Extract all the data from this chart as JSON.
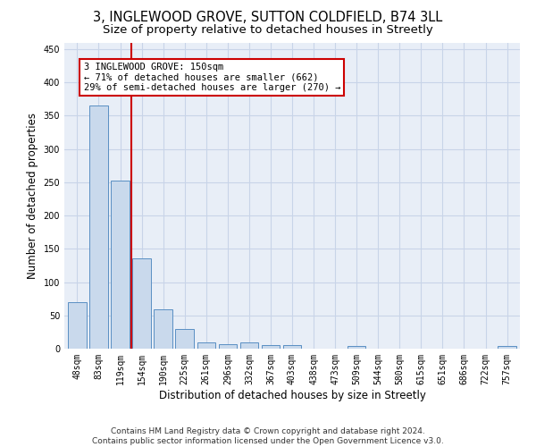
{
  "title_line1": "3, INGLEWOOD GROVE, SUTTON COLDFIELD, B74 3LL",
  "title_line2": "Size of property relative to detached houses in Streetly",
  "xlabel": "Distribution of detached houses by size in Streetly",
  "ylabel": "Number of detached properties",
  "categories": [
    "48sqm",
    "83sqm",
    "119sqm",
    "154sqm",
    "190sqm",
    "225sqm",
    "261sqm",
    "296sqm",
    "332sqm",
    "367sqm",
    "403sqm",
    "438sqm",
    "473sqm",
    "509sqm",
    "544sqm",
    "580sqm",
    "615sqm",
    "651sqm",
    "686sqm",
    "722sqm",
    "757sqm"
  ],
  "values": [
    70,
    365,
    252,
    135,
    59,
    30,
    10,
    7,
    10,
    5,
    5,
    0,
    0,
    4,
    0,
    0,
    0,
    0,
    0,
    0,
    4
  ],
  "bar_color": "#c9d9ec",
  "bar_edge_color": "#5a8fc3",
  "annotation_line1": "3 INGLEWOOD GROVE: 150sqm",
  "annotation_line2": "← 71% of detached houses are smaller (662)",
  "annotation_line3": "29% of semi-detached houses are larger (270) →",
  "annotation_box_color": "#ffffff",
  "annotation_box_edge_color": "#cc0000",
  "red_line_color": "#cc0000",
  "ylim": [
    0,
    460
  ],
  "yticks": [
    0,
    50,
    100,
    150,
    200,
    250,
    300,
    350,
    400,
    450
  ],
  "footer_line1": "Contains HM Land Registry data © Crown copyright and database right 2024.",
  "footer_line2": "Contains public sector information licensed under the Open Government Licence v3.0.",
  "background_color": "#ffffff",
  "plot_bg_color": "#e8eef7",
  "grid_color": "#c8d4e8",
  "title_fontsize": 10.5,
  "subtitle_fontsize": 9.5,
  "tick_fontsize": 7,
  "axis_label_fontsize": 8.5,
  "footer_fontsize": 6.5,
  "annotation_fontsize": 7.5
}
